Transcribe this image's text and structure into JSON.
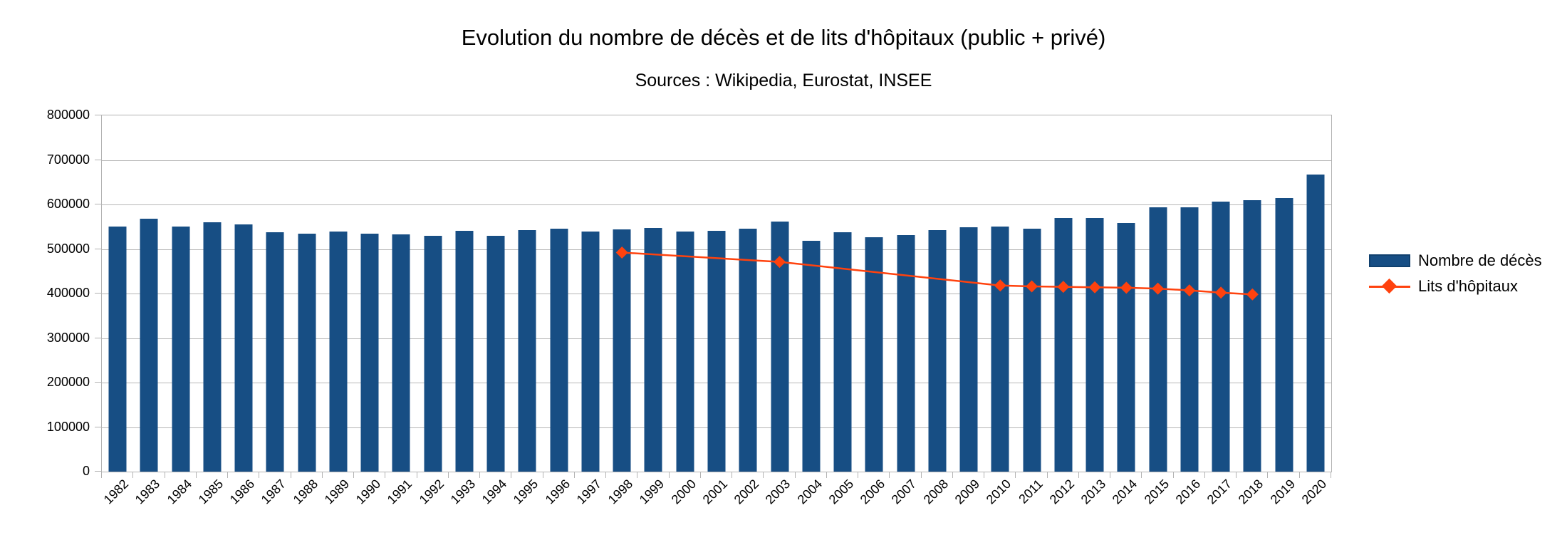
{
  "page": {
    "background": "#ffffff"
  },
  "colors": {
    "bar_series": "#174e84",
    "line_series": "#ff420e",
    "grid": "#b3b3b3",
    "text": "#000000",
    "background": "#ffffff"
  },
  "legend": {
    "position": "right",
    "items": [
      {
        "label": "Nombre de décès",
        "swatch": "bar-swatch",
        "color": "#174e84"
      },
      {
        "label": "Lits d'hôpitaux",
        "swatch": "line-with-diamond-marker",
        "color": "#ff420e"
      }
    ]
  },
  "chart_data": {
    "type": "combo bar+line",
    "title": "Evolution du nombre de décès et de lits d'hôpitaux (public + privé)",
    "subtitle": "Sources : Wikipedia, Eurostat, INSEE",
    "grid": "horizontal",
    "legend_position": "right",
    "categories": [
      "1982",
      "1983",
      "1984",
      "1985",
      "1986",
      "1987",
      "1988",
      "1989",
      "1990",
      "1991",
      "1992",
      "1993",
      "1994",
      "1995",
      "1996",
      "1997",
      "1998",
      "1999",
      "2000",
      "2001",
      "2002",
      "2003",
      "2004",
      "2005",
      "2006",
      "2007",
      "2008",
      "2009",
      "2010",
      "2011",
      "2012",
      "2013",
      "2014",
      "2015",
      "2016",
      "2017",
      "2018",
      "2019",
      "2020"
    ],
    "x_axis": {
      "label_rotation_deg": -45
    },
    "y_axis": {
      "min": 0,
      "max": 800000,
      "step": 100000,
      "tick_labels": [
        "0",
        "100000",
        "200000",
        "300000",
        "400000",
        "500000",
        "600000",
        "700000",
        "800000"
      ]
    },
    "series": [
      {
        "name": "Nombre de décès",
        "type": "bar",
        "color": "#174e84",
        "values": [
          551000,
          568000,
          551000,
          560000,
          556000,
          537000,
          534000,
          540000,
          535000,
          533000,
          530000,
          541000,
          529000,
          542000,
          546000,
          540000,
          544000,
          548000,
          540000,
          541000,
          545000,
          562000,
          519000,
          538000,
          527000,
          531000,
          543000,
          549000,
          551000,
          545000,
          570000,
          569000,
          559000,
          594000,
          594000,
          607000,
          610000,
          614000,
          667000
        ]
      },
      {
        "name": "Lits d'hôpitaux",
        "type": "line",
        "color": "#ff420e",
        "marker": "diamond",
        "values": [
          null,
          null,
          null,
          null,
          null,
          null,
          null,
          null,
          null,
          null,
          null,
          null,
          null,
          null,
          null,
          null,
          492000,
          null,
          null,
          null,
          null,
          471000,
          null,
          null,
          null,
          null,
          null,
          null,
          418000,
          416000,
          415000,
          414000,
          413000,
          411000,
          407000,
          402000,
          398000,
          null,
          null
        ]
      }
    ]
  }
}
